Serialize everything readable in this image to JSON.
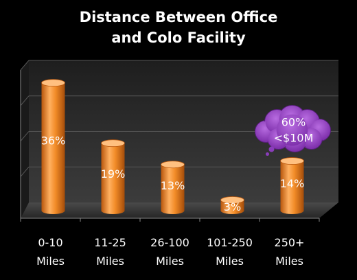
{
  "chart_data": {
    "type": "bar",
    "title_lines": [
      "Distance Between Office",
      "and Colo Facility"
    ],
    "categories": [
      [
        "0-10",
        "Miles"
      ],
      [
        "11-25",
        "Miles"
      ],
      [
        "26-100",
        "Miles"
      ],
      [
        "101-250",
        "Miles"
      ],
      [
        "250+",
        "Miles"
      ]
    ],
    "values": [
      36,
      19,
      13,
      3,
      14
    ],
    "data_labels": [
      "36%",
      "19%",
      "13%",
      "3%",
      "14%"
    ],
    "ylim": [
      0,
      40
    ],
    "grid": true,
    "callout": {
      "category_index": 4,
      "lines": [
        "60%",
        "<$10M"
      ],
      "color": "#9933cc"
    },
    "colors": {
      "bar": "#f28c28",
      "bar_dark": "#b8560c",
      "bar_light": "#ffc080",
      "background": "#000000",
      "floor": "#3a3a3a",
      "back_wall": "#2b2b2b"
    }
  }
}
